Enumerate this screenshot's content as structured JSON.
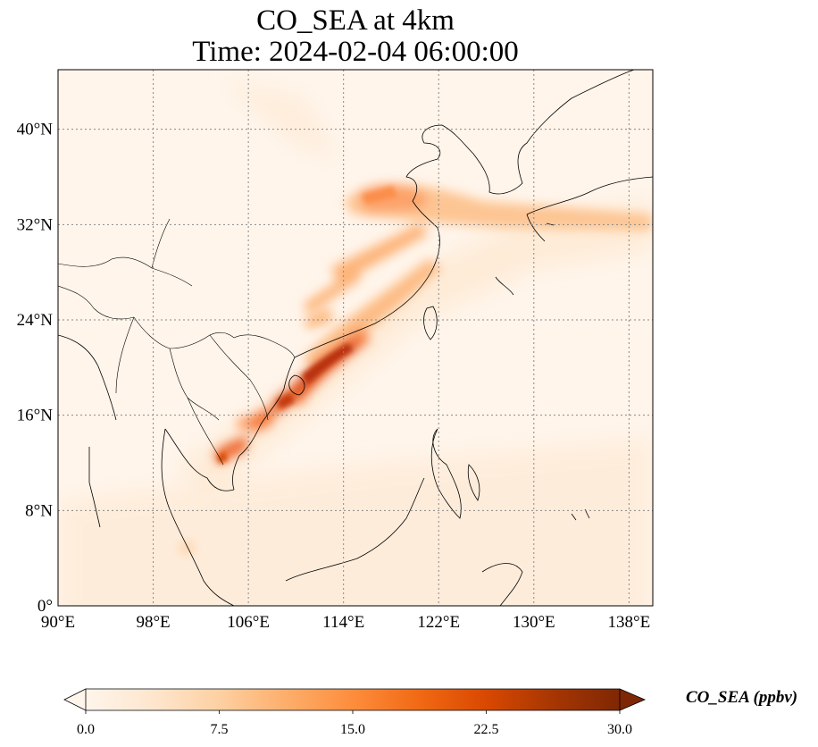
{
  "title": {
    "line1": "CO_SEA at 4km",
    "line2": "Time: 2024-02-04 06:00:00"
  },
  "map": {
    "lon_range": [
      90,
      140
    ],
    "lat_range": [
      0,
      45
    ],
    "x_ticks": [
      {
        "lon": 90,
        "label": "90°E"
      },
      {
        "lon": 98,
        "label": "98°E"
      },
      {
        "lon": 106,
        "label": "106°E"
      },
      {
        "lon": 114,
        "label": "114°E"
      },
      {
        "lon": 122,
        "label": "122°E"
      },
      {
        "lon": 130,
        "label": "130°E"
      },
      {
        "lon": 138,
        "label": "138°E"
      }
    ],
    "y_ticks": [
      {
        "lat": 0,
        "label": "0°"
      },
      {
        "lat": 8,
        "label": "8°N"
      },
      {
        "lat": 16,
        "label": "16°N"
      },
      {
        "lat": 24,
        "label": "24°N"
      },
      {
        "lat": 32,
        "label": "32°N"
      },
      {
        "lat": 40,
        "label": "40°N"
      }
    ],
    "gridlines": true,
    "background_color": "#fff5eb"
  },
  "colorbar": {
    "title": "CO_SEA (ppbv)",
    "min": 0.0,
    "max": 30.0,
    "extend": "both",
    "ticks": [
      {
        "value": 0.0,
        "label": "0.0"
      },
      {
        "value": 7.5,
        "label": "7.5"
      },
      {
        "value": 15.0,
        "label": "15.0"
      },
      {
        "value": 22.5,
        "label": "22.5"
      },
      {
        "value": 30.0,
        "label": "30.0"
      }
    ],
    "colormap": [
      "#fff5eb",
      "#fee6ce",
      "#fdd0a2",
      "#fdae6b",
      "#fd8d3c",
      "#f16913",
      "#d94801",
      "#a63603",
      "#7f2704"
    ]
  }
}
